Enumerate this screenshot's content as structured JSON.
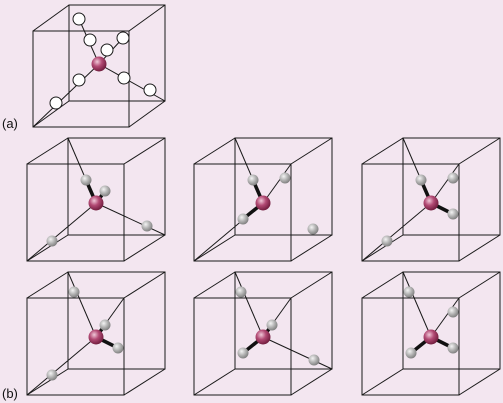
{
  "labels": {
    "a": "(a)",
    "b": "(b)"
  },
  "colors": {
    "background": "#f3e6f0",
    "edge": "#1a1a1a",
    "center_atom": "#a0305e",
    "center_atom_highlight": "#f0c8d8",
    "open_site_fill": "#ffffff",
    "occupied_site": "#a8a8a8",
    "occupied_site_highlight": "#f4f4f4"
  },
  "panels": {
    "a": {
      "description_icon": "cube-icon",
      "open_sites": 8
    },
    "b": {
      "description_icon": "cube-icon",
      "configurations": 6,
      "occupied_sites_each": 4
    }
  }
}
